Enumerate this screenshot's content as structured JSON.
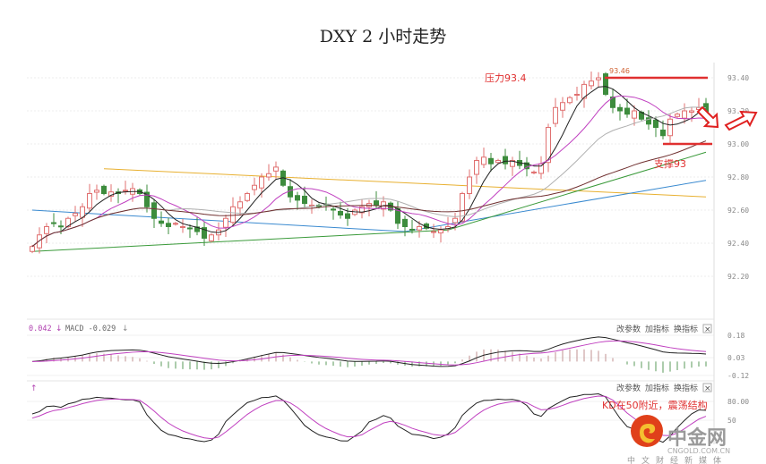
{
  "title": "DXY 2 小时走势",
  "chart_data": {
    "type": "candlestick",
    "title": "DXY 2 小时走势",
    "main": {
      "y_ticks": [
        "93.40",
        "93.20",
        "93.00",
        "92.80",
        "92.60",
        "92.40",
        "92.20"
      ],
      "ylim": [
        92.1,
        93.5
      ],
      "closes": [
        92.38,
        92.45,
        92.5,
        92.52,
        92.5,
        92.55,
        92.58,
        92.62,
        92.7,
        92.72,
        92.7,
        92.71,
        92.7,
        92.72,
        92.73,
        92.7,
        92.62,
        92.55,
        92.52,
        92.5,
        92.52,
        92.5,
        92.49,
        92.47,
        92.43,
        92.45,
        92.48,
        92.55,
        92.62,
        92.65,
        92.7,
        92.75,
        92.8,
        92.82,
        92.86,
        92.75,
        92.68,
        92.66,
        92.64,
        92.63,
        92.62,
        92.63,
        92.6,
        92.57,
        92.55,
        92.6,
        92.62,
        92.64,
        92.63,
        92.65,
        92.6,
        92.52,
        92.5,
        92.48,
        92.5,
        92.49,
        92.47,
        92.48,
        92.5,
        92.55,
        92.7,
        92.8,
        92.9,
        92.92,
        92.88,
        92.9,
        92.88,
        92.9,
        92.87,
        92.85,
        92.83,
        92.88,
        93.1,
        93.22,
        93.25,
        93.28,
        93.3,
        93.36,
        93.38,
        93.4,
        93.3,
        93.22,
        93.2,
        93.18,
        93.2,
        93.15,
        93.12,
        93.1,
        93.05,
        93.15,
        93.18,
        93.2,
        93.2,
        93.22,
        93.18
      ],
      "high_label": "93.46",
      "long_ma": [
        {
          "color": "#e8b030",
          "points": [
            [
              10,
              92.85
            ],
            [
              94,
              92.68
            ]
          ]
        },
        {
          "color": "#3a8ad0",
          "points": [
            [
              0,
              92.6
            ],
            [
              52,
              92.47
            ],
            [
              94,
              92.78
            ]
          ]
        },
        {
          "color": "#3a9a3a",
          "points": [
            [
              0,
              92.35
            ],
            [
              58,
              92.48
            ],
            [
              94,
              92.95
            ]
          ]
        }
      ],
      "ma_colors": [
        "#222222",
        "#c040c0",
        "#b0b0b0",
        "#703030"
      ],
      "ma_periods": [
        5,
        10,
        20,
        40
      ],
      "annotations": {
        "resistance_label": "压力93.4",
        "resistance": 93.4,
        "support_label": "支撑93",
        "support": 93.0
      }
    },
    "macd": {
      "label_prefix": "0.042",
      "label": "MACD -0.029",
      "y_ticks": [
        "0.18",
        "0.03",
        "-0.12"
      ]
    },
    "kd": {
      "y_ticks": [
        "80.00",
        "50"
      ],
      "annotation": "KD在50附近，震荡结构"
    },
    "colors": {
      "up": "#e07070",
      "down": "#3d8c3d",
      "annotation": "#e03030"
    }
  },
  "panel_buttons": {
    "edit": "改参数",
    "add": "加指标",
    "swap": "换指标",
    "close": "×"
  },
  "watermark": {
    "brand": "中金网",
    "domain": "CNGOLD.COM.CN",
    "slogan": "中文财经新媒体"
  }
}
